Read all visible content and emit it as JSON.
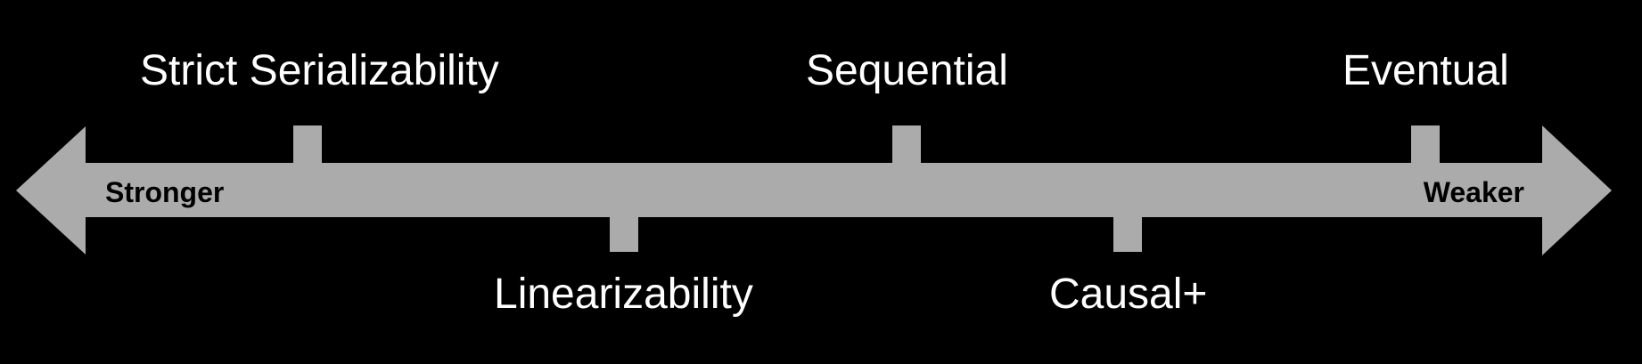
{
  "colors": {
    "background": "#000000",
    "arrow": "#ababab",
    "model_text": "#ffffff",
    "end_text": "#000000"
  },
  "ends": {
    "left": "Stronger",
    "right": "Weaker"
  },
  "models_above": [
    "Strict Serializability",
    "Sequential",
    "Eventual"
  ],
  "models_below": [
    "Linearizability",
    "Causal+"
  ]
}
